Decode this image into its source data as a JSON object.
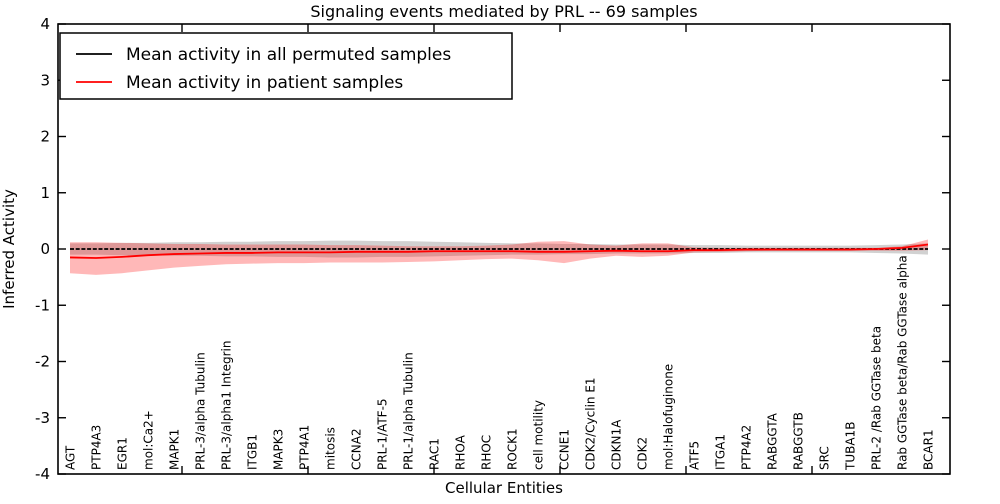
{
  "figure": {
    "title": "Signaling events mediated by PRL -- 69 samples",
    "xlabel": "Cellular Entities",
    "ylabel": "Inferred Activity"
  },
  "legend": {
    "position": "upper left",
    "entries": [
      {
        "label": "Mean activity in all permuted samples",
        "color": "#000000"
      },
      {
        "label": "Mean activity in patient samples",
        "color": "#ff0000"
      }
    ]
  },
  "chart_data": {
    "type": "line",
    "title": "Signaling events mediated by PRL -- 69 samples",
    "xlabel": "Cellular Entities",
    "ylabel": "Inferred Activity",
    "ylim": [
      -4,
      4
    ],
    "yticks": [
      -4,
      -3,
      -2,
      -1,
      0,
      1,
      2,
      3,
      4
    ],
    "grid": false,
    "legend_position": "upper left",
    "categories": [
      "AGT",
      "PTP4A3",
      "EGR1",
      "mol:Ca2+",
      "MAPK1",
      "PRL-3/alpha Tubulin",
      "PRL-3/alpha1 Integrin",
      "ITGB1",
      "MAPK3",
      "PTP4A1",
      "mitosis",
      "CCNA2",
      "PRL-1/ATF-5",
      "PRL-1/alpha Tubulin",
      "RAC1",
      "RHOA",
      "RHOC",
      "ROCK1",
      "cell motility",
      "CCNE1",
      "CDK2/Cyclin E1",
      "CDKN1A",
      "CDK2",
      "mol:Halofuginone",
      "ATF5",
      "ITGA1",
      "PTP4A2",
      "RABGGTA",
      "RABGGTB",
      "SRC",
      "TUBA1B",
      "PRL-2 /Rab GGTase beta",
      "Rab GGTase beta/Rab GGTase alpha",
      "BCAR1"
    ],
    "series": [
      {
        "name": "Mean activity in all permuted samples",
        "color": "#000000",
        "style": "dashed",
        "values": [
          0.0,
          0.0,
          0.0,
          0.0,
          0.0,
          0.0,
          0.0,
          0.0,
          0.0,
          0.0,
          0.0,
          0.0,
          0.0,
          0.0,
          0.0,
          0.0,
          0.0,
          0.0,
          0.0,
          0.0,
          0.0,
          0.0,
          0.0,
          0.0,
          0.0,
          0.0,
          0.0,
          0.0,
          0.0,
          0.0,
          0.0,
          0.0,
          0.0,
          0.0
        ]
      },
      {
        "name": "Mean activity in patient samples",
        "color": "#ff0000",
        "style": "solid",
        "values": [
          -0.15,
          -0.16,
          -0.14,
          -0.11,
          -0.09,
          -0.08,
          -0.07,
          -0.07,
          -0.06,
          -0.06,
          -0.06,
          -0.05,
          -0.05,
          -0.05,
          -0.04,
          -0.04,
          -0.04,
          -0.04,
          -0.05,
          -0.05,
          -0.04,
          -0.03,
          -0.04,
          -0.04,
          -0.02,
          -0.02,
          -0.01,
          -0.01,
          -0.01,
          -0.01,
          -0.01,
          0.0,
          0.02,
          0.08
        ]
      }
    ],
    "bands": [
      {
        "name": "permuted-samples-range",
        "color": "#999999",
        "opacity": 0.45,
        "upper": [
          0.1,
          0.1,
          0.11,
          0.11,
          0.12,
          0.12,
          0.13,
          0.13,
          0.14,
          0.14,
          0.15,
          0.15,
          0.14,
          0.14,
          0.13,
          0.12,
          0.11,
          0.1,
          0.1,
          0.09,
          0.09,
          0.08,
          0.08,
          0.08,
          0.07,
          0.07,
          0.06,
          0.06,
          0.06,
          0.06,
          0.06,
          0.07,
          0.08,
          0.1
        ],
        "lower": [
          -0.1,
          -0.1,
          -0.11,
          -0.11,
          -0.12,
          -0.12,
          -0.13,
          -0.13,
          -0.14,
          -0.14,
          -0.15,
          -0.15,
          -0.14,
          -0.14,
          -0.13,
          -0.12,
          -0.11,
          -0.1,
          -0.1,
          -0.09,
          -0.09,
          -0.08,
          -0.08,
          -0.08,
          -0.07,
          -0.07,
          -0.06,
          -0.06,
          -0.06,
          -0.06,
          -0.06,
          -0.07,
          -0.08,
          -0.1
        ]
      },
      {
        "name": "patient-samples-range",
        "color": "#ff0000",
        "opacity": 0.28,
        "upper": [
          0.12,
          0.12,
          0.11,
          0.1,
          0.09,
          0.09,
          0.08,
          0.08,
          0.08,
          0.08,
          0.07,
          0.07,
          0.06,
          0.05,
          0.05,
          0.05,
          0.06,
          0.08,
          0.13,
          0.14,
          0.08,
          0.06,
          0.1,
          0.1,
          0.03,
          0.02,
          0.02,
          0.02,
          0.02,
          0.02,
          0.02,
          0.02,
          0.05,
          0.17
        ],
        "lower": [
          -0.43,
          -0.46,
          -0.43,
          -0.38,
          -0.33,
          -0.3,
          -0.27,
          -0.26,
          -0.25,
          -0.25,
          -0.24,
          -0.24,
          -0.24,
          -0.23,
          -0.22,
          -0.2,
          -0.18,
          -0.17,
          -0.2,
          -0.25,
          -0.17,
          -0.12,
          -0.14,
          -0.12,
          -0.06,
          -0.05,
          -0.04,
          -0.03,
          -0.03,
          -0.03,
          -0.03,
          -0.03,
          -0.03,
          -0.02
        ]
      }
    ]
  },
  "axes": {
    "ytick_labels": [
      "4",
      "3",
      "2",
      "1",
      "0",
      "-1",
      "-2",
      "-3",
      "-4"
    ]
  }
}
